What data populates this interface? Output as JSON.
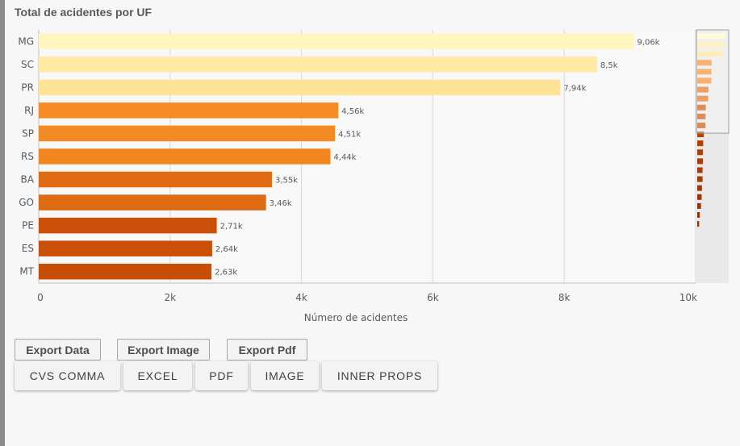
{
  "title": "Total de acidentes por UF",
  "chart_data": {
    "type": "bar",
    "orientation": "horizontal",
    "categories": [
      "MG",
      "SC",
      "PR",
      "RJ",
      "SP",
      "RS",
      "BA",
      "GO",
      "PE",
      "ES",
      "MT"
    ],
    "values": [
      9060,
      8500,
      7940,
      4560,
      4510,
      4440,
      3550,
      3460,
      2710,
      2640,
      2630
    ],
    "data_labels": [
      "9,06k",
      "8,5k",
      "7,94k",
      "4,56k",
      "4,51k",
      "4,44k",
      "3,55k",
      "3,46k",
      "2,71k",
      "2,64k",
      "2,63k"
    ],
    "colors": [
      "#fff6bf",
      "#ffe9a3",
      "#fee397",
      "#f58b25",
      "#f48a23",
      "#f2871f",
      "#e06b13",
      "#de6a12",
      "#cb4f06",
      "#cb4f06",
      "#c84e06"
    ],
    "xlabel": "Número de acidentes",
    "ylabel": "",
    "xlim": [
      0,
      10000
    ],
    "x_ticks": [
      0,
      2000,
      4000,
      6000,
      8000,
      10000
    ],
    "x_tick_labels": [
      "0",
      "2k",
      "4k",
      "6k",
      "8k",
      "10k"
    ],
    "grid": true,
    "minimap": {
      "values": [
        9060,
        8500,
        7940,
        4560,
        4510,
        4440,
        3550,
        3460,
        2710,
        2640,
        2630,
        2100,
        1900,
        1800,
        1800,
        1700,
        1700,
        1500,
        1400,
        1200,
        800,
        600
      ],
      "colors": [
        "#fff6bf",
        "#ffe9a3",
        "#fee397",
        "#f58b25",
        "#f48a23",
        "#f2871f",
        "#e06b13",
        "#de6a12",
        "#cb4f06",
        "#cb4f06",
        "#c84e06",
        "#b5410a",
        "#b03f0a",
        "#ad3d0a",
        "#ab3c0a",
        "#a73a0a",
        "#a5390a",
        "#a1370a",
        "#9d350a",
        "#99330a",
        "#95310a",
        "#91300a"
      ]
    }
  },
  "buttons_row1": [
    {
      "label": "Export Data"
    },
    {
      "label": "Export Image"
    },
    {
      "label": "Export Pdf"
    }
  ],
  "buttons_row2": [
    {
      "label": "CVS COMMA"
    },
    {
      "label": "EXCEL"
    },
    {
      "label": "PDF"
    },
    {
      "label": "IMAGE"
    },
    {
      "label": "INNER PROPS"
    }
  ]
}
